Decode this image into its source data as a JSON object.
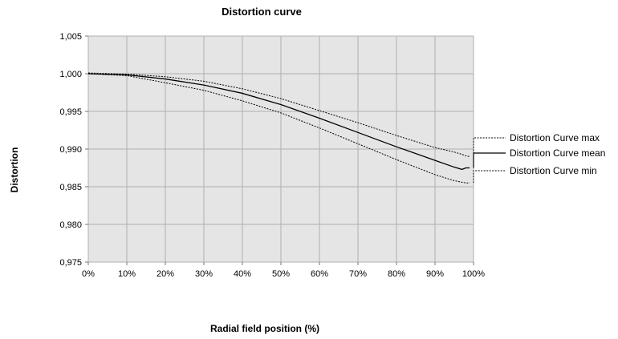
{
  "chart_data": {
    "type": "line",
    "title": "Distortion curve",
    "xlabel": "Radial field position (%)",
    "ylabel": "Distortion",
    "x_ticks": [
      "0%",
      "10%",
      "20%",
      "30%",
      "40%",
      "50%",
      "60%",
      "70%",
      "80%",
      "90%",
      "100%"
    ],
    "y_ticks": [
      "0,975",
      "0,980",
      "0,985",
      "0,990",
      "0,995",
      "1,000",
      "1,005"
    ],
    "xlim": [
      0,
      100
    ],
    "ylim": [
      0.975,
      1.005
    ],
    "grid": true,
    "legend_position": "right",
    "x": [
      0,
      10,
      20,
      30,
      40,
      50,
      60,
      70,
      80,
      90,
      95,
      97,
      98,
      99
    ],
    "series": [
      {
        "name": "Distortion Curve max",
        "style": "dotted",
        "values": [
          1.0001,
          0.99995,
          0.9996,
          0.999,
          0.998,
          0.9967,
          0.9951,
          0.9935,
          0.9918,
          0.9902,
          0.9896,
          0.9893,
          0.9891,
          0.989
        ]
      },
      {
        "name": "Distortion Curve mean",
        "style": "solid",
        "values": [
          1.0,
          0.99985,
          0.9993,
          0.9985,
          0.9974,
          0.9959,
          0.9941,
          0.9922,
          0.9903,
          0.9885,
          0.9876,
          0.9873,
          0.9875,
          0.9875
        ]
      },
      {
        "name": "Distortion Curve min",
        "style": "dotted",
        "values": [
          1.0,
          0.99975,
          0.9988,
          0.9978,
          0.9964,
          0.9948,
          0.9928,
          0.9907,
          0.9886,
          0.9866,
          0.9858,
          0.9856,
          0.9855,
          0.9855
        ]
      }
    ],
    "colors": {
      "line": "#000000",
      "plot_bg": "#e5e5e5",
      "grid": "#b0b0b0"
    }
  }
}
